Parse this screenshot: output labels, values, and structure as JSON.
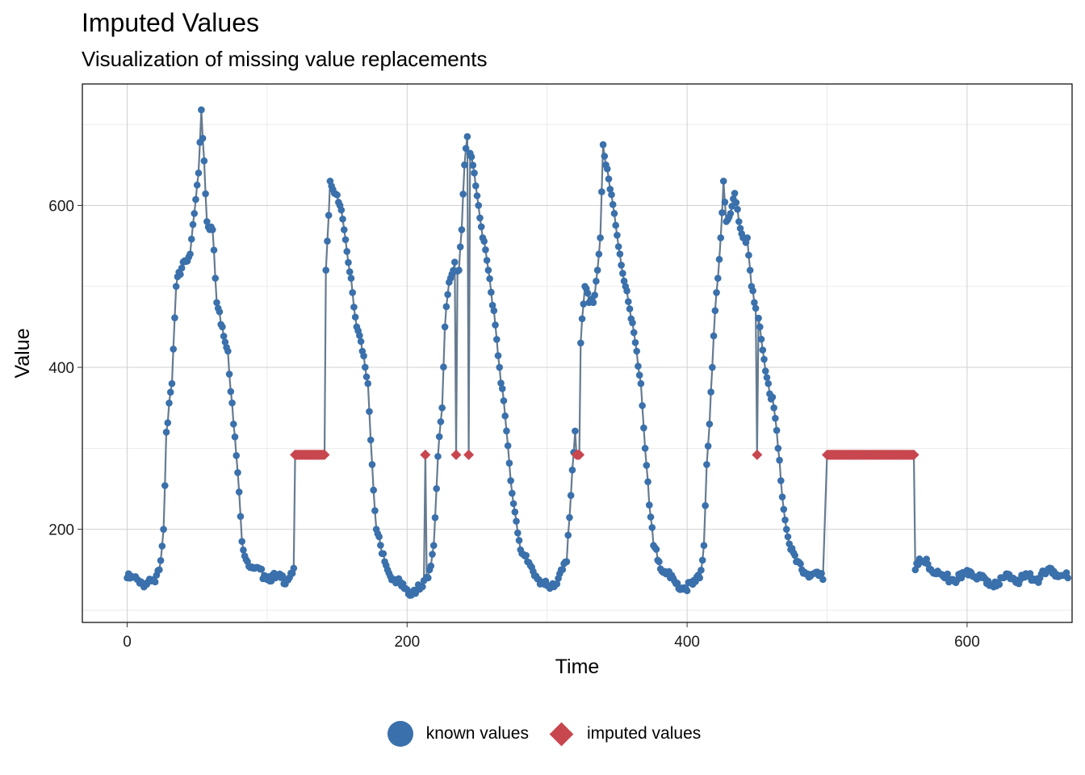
{
  "chart_data": {
    "type": "line",
    "title": "Imputed Values",
    "subtitle": "Visualization of missing value replacements",
    "xlabel": "Time",
    "ylabel": "Value",
    "xlim": [
      -32,
      675
    ],
    "ylim": [
      85,
      750
    ],
    "xticks": [
      0,
      200,
      400,
      600
    ],
    "yticks": [
      200,
      400,
      600
    ],
    "xminor": [
      100,
      300,
      500
    ],
    "yminor": [
      100,
      300,
      500,
      700
    ],
    "grid": true,
    "legend_position": "bottom",
    "colors": {
      "line": "#667B8F",
      "known": "#3A70AB",
      "imputed": "#C8474F"
    },
    "imputed_value": 292,
    "imputed_ranges": [
      [
        120,
        141
      ],
      [
        213,
        213
      ],
      [
        235,
        235
      ],
      [
        244,
        244
      ],
      [
        321,
        323
      ],
      [
        450,
        450
      ],
      [
        500,
        562
      ]
    ],
    "series": [
      {
        "name": "known values",
        "keypoints": [
          [
            0,
            140
          ],
          [
            8,
            137
          ],
          [
            14,
            132
          ],
          [
            20,
            135
          ],
          [
            23,
            150
          ],
          [
            26,
            200
          ],
          [
            28,
            320
          ],
          [
            32,
            380
          ],
          [
            35,
            500
          ],
          [
            40,
            530
          ],
          [
            45,
            540
          ],
          [
            48,
            590
          ],
          [
            51,
            640
          ],
          [
            53,
            718
          ],
          [
            55,
            655
          ],
          [
            57,
            580
          ],
          [
            61,
            570
          ],
          [
            64,
            480
          ],
          [
            68,
            450
          ],
          [
            72,
            420
          ],
          [
            76,
            330
          ],
          [
            79,
            270
          ],
          [
            82,
            185
          ],
          [
            86,
            160
          ],
          [
            90,
            152
          ],
          [
            98,
            143
          ],
          [
            106,
            140
          ],
          [
            114,
            138
          ],
          [
            119,
            152
          ],
          [
            142,
            520
          ],
          [
            145,
            630
          ],
          [
            148,
            615
          ],
          [
            152,
            600
          ],
          [
            155,
            570
          ],
          [
            160,
            510
          ],
          [
            164,
            450
          ],
          [
            168,
            420
          ],
          [
            172,
            380
          ],
          [
            175,
            280
          ],
          [
            178,
            200
          ],
          [
            182,
            170
          ],
          [
            186,
            150
          ],
          [
            191,
            138
          ],
          [
            196,
            130
          ],
          [
            201,
            120
          ],
          [
            205,
            125
          ],
          [
            209,
            126
          ],
          [
            211,
            129
          ],
          [
            215,
            140
          ],
          [
            219,
            180
          ],
          [
            222,
            290
          ],
          [
            225,
            350
          ],
          [
            227,
            450
          ],
          [
            229,
            490
          ],
          [
            231,
            510
          ],
          [
            234,
            530
          ],
          [
            237,
            520
          ],
          [
            239,
            570
          ],
          [
            241,
            650
          ],
          [
            243,
            685
          ],
          [
            246,
            660
          ],
          [
            248,
            640
          ],
          [
            251,
            600
          ],
          [
            254,
            560
          ],
          [
            258,
            520
          ],
          [
            262,
            470
          ],
          [
            266,
            400
          ],
          [
            270,
            340
          ],
          [
            274,
            260
          ],
          [
            278,
            210
          ],
          [
            282,
            170
          ],
          [
            286,
            160
          ],
          [
            290,
            148
          ],
          [
            294,
            138
          ],
          [
            298,
            132
          ],
          [
            302,
            127
          ],
          [
            306,
            132
          ],
          [
            310,
            150
          ],
          [
            314,
            160
          ],
          [
            319,
            295
          ],
          [
            325,
            460
          ],
          [
            327,
            500
          ],
          [
            330,
            480
          ],
          [
            333,
            480
          ],
          [
            336,
            520
          ],
          [
            338,
            560
          ],
          [
            340,
            675
          ],
          [
            342,
            650
          ],
          [
            345,
            620
          ],
          [
            348,
            590
          ],
          [
            352,
            540
          ],
          [
            356,
            500
          ],
          [
            360,
            460
          ],
          [
            364,
            420
          ],
          [
            367,
            380
          ],
          [
            370,
            300
          ],
          [
            373,
            230
          ],
          [
            376,
            180
          ],
          [
            380,
            160
          ],
          [
            384,
            148
          ],
          [
            388,
            140
          ],
          [
            392,
            133
          ],
          [
            398,
            128
          ],
          [
            404,
            132
          ],
          [
            409,
            140
          ],
          [
            412,
            180
          ],
          [
            414,
            280
          ],
          [
            416,
            330
          ],
          [
            418,
            400
          ],
          [
            420,
            470
          ],
          [
            422,
            510
          ],
          [
            424,
            560
          ],
          [
            426,
            630
          ],
          [
            428,
            580
          ],
          [
            431,
            590
          ],
          [
            434,
            615
          ],
          [
            437,
            580
          ],
          [
            440,
            560
          ],
          [
            443,
            560
          ],
          [
            446,
            500
          ],
          [
            448,
            480
          ],
          [
            452,
            450
          ],
          [
            455,
            410
          ],
          [
            458,
            380
          ],
          [
            462,
            350
          ],
          [
            465,
            300
          ],
          [
            468,
            240
          ],
          [
            471,
            200
          ],
          [
            474,
            175
          ],
          [
            478,
            160
          ],
          [
            482,
            150
          ],
          [
            486,
            145
          ],
          [
            490,
            145
          ],
          [
            494,
            143
          ],
          [
            497,
            138
          ],
          [
            563,
            150
          ],
          [
            567,
            160
          ],
          [
            572,
            157
          ],
          [
            578,
            145
          ],
          [
            584,
            140
          ],
          [
            590,
            138
          ],
          [
            596,
            140
          ],
          [
            602,
            148
          ],
          [
            608,
            142
          ],
          [
            614,
            133
          ],
          [
            620,
            135
          ],
          [
            626,
            140
          ],
          [
            632,
            140
          ],
          [
            638,
            138
          ],
          [
            644,
            142
          ],
          [
            650,
            139
          ],
          [
            656,
            145
          ],
          [
            662,
            148
          ],
          [
            668,
            143
          ],
          [
            672,
            140
          ]
        ]
      },
      {
        "name": "imputed values"
      }
    ]
  },
  "legend": {
    "known_label": "known values",
    "imputed_label": "imputed values"
  }
}
